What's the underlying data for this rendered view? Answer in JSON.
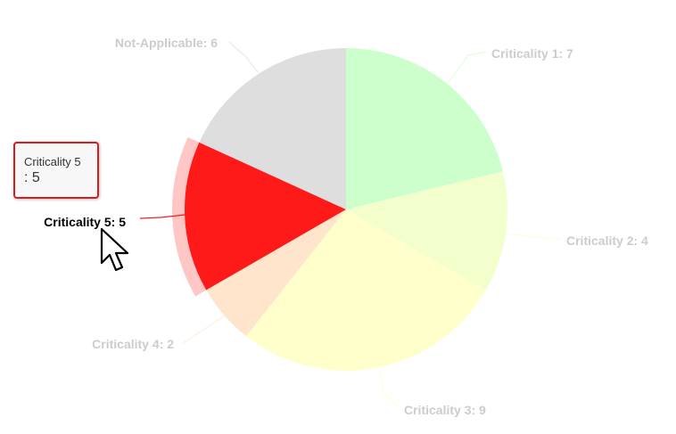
{
  "chart_data": {
    "type": "pie",
    "slices": [
      {
        "label": "Criticality 1",
        "value": 7,
        "color": "#ccffcc",
        "label_text": "Criticality 1: 7"
      },
      {
        "label": "Criticality 2",
        "value": 4,
        "color": "#f2ffcc",
        "label_text": "Criticality 2: 4"
      },
      {
        "label": "Criticality 3",
        "value": 9,
        "color": "#ffffcc",
        "label_text": "Criticality 3: 9"
      },
      {
        "label": "Criticality 4",
        "value": 2,
        "color": "#ffe5cc",
        "label_text": "Criticality 4: 2"
      },
      {
        "label": "Criticality 5",
        "value": 5,
        "color": "#ff1a1a",
        "label_text": "Criticality 5: 5"
      },
      {
        "label": "Not-Applicable",
        "value": 6,
        "color": "#dedede",
        "label_text": "Not-Applicable: 6"
      }
    ],
    "hovered_slice": "Criticality 5",
    "faded_label_color": "#cccccc",
    "active_label_color": "#000000"
  },
  "tooltip": {
    "series_name": "Criticality 5",
    "value_text": ": 5",
    "border_color": "#d81b1b"
  },
  "cursor": {
    "icon": "arrow-pointer-icon"
  }
}
